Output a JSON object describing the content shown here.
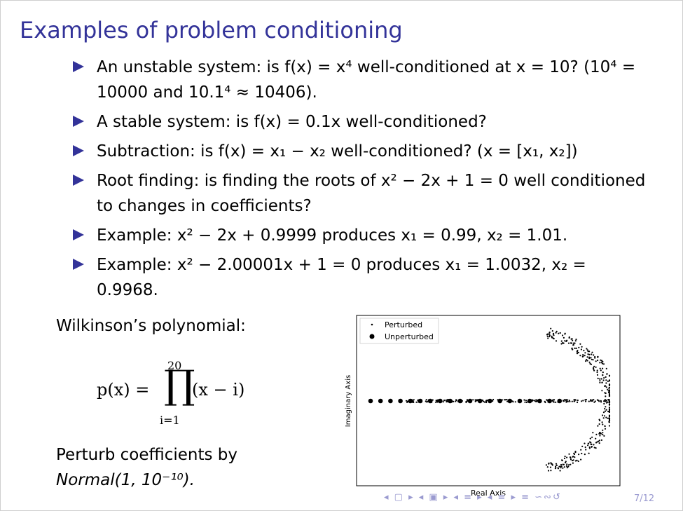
{
  "slide": {
    "title": "Examples of problem conditioning",
    "page": "7/12",
    "nav_icons": "◂ ▢ ▸ ◂ ▣ ▸ ◂ ≡ ▸ ◂ ≡ ▸   ≡   ∽∾↺"
  },
  "bullets": [
    {
      "text": "An unstable system: is f(x) = x⁴ well-conditioned at x = 10? (10⁴ = 10000 and 10.1⁴ ≈ 10406)."
    },
    {
      "text": "A stable system: is f(x) = 0.1x well-conditioned?"
    },
    {
      "text": "Subtraction: is f(x) = x₁ − x₂ well-conditioned? (x = [x₁, x₂])"
    },
    {
      "text": "Root finding: is finding the roots of x² − 2x + 1 = 0 well conditioned to changes in coefficients?"
    },
    {
      "text": "Example: x² − 2x + 0.9999 produces x₁ = 0.99, x₂ = 1.01."
    },
    {
      "text": "Example: x² − 2.00001x + 1 = 0 produces x₁ = 1.0032, x₂ = 0.9968."
    }
  ],
  "left": {
    "wilkinson_label": "Wilkinson’s polynomial:",
    "formula_lhs": "p(x) =",
    "formula_body": "(x − i)",
    "prod_symbol": "∏",
    "prod_upper": "20",
    "prod_lower": "i=1",
    "perturb_line1": "Perturb coefficients by",
    "perturb_line2": "Normal(1, 10⁻¹⁰)."
  },
  "chart_data": {
    "type": "scatter",
    "xlabel": "Real Axis",
    "ylabel": "Imaginary Axis",
    "legend": {
      "placement": "top-left",
      "entries": [
        "Perturbed",
        "Unperturbed"
      ]
    },
    "grid": false,
    "series": [
      {
        "name": "Unperturbed",
        "x": [
          1,
          2,
          3,
          4,
          5,
          6,
          7,
          8,
          9,
          10,
          11,
          12,
          13,
          14,
          15,
          16,
          17,
          18,
          19,
          20
        ],
        "y": [
          0,
          0,
          0,
          0,
          0,
          0,
          0,
          0,
          0,
          0,
          0,
          0,
          0,
          0,
          0,
          0,
          0,
          0,
          0,
          0
        ]
      },
      {
        "name": "Perturbed",
        "description_points": "cloud of perturbed roots forming an oval around the real axis"
      }
    ]
  }
}
